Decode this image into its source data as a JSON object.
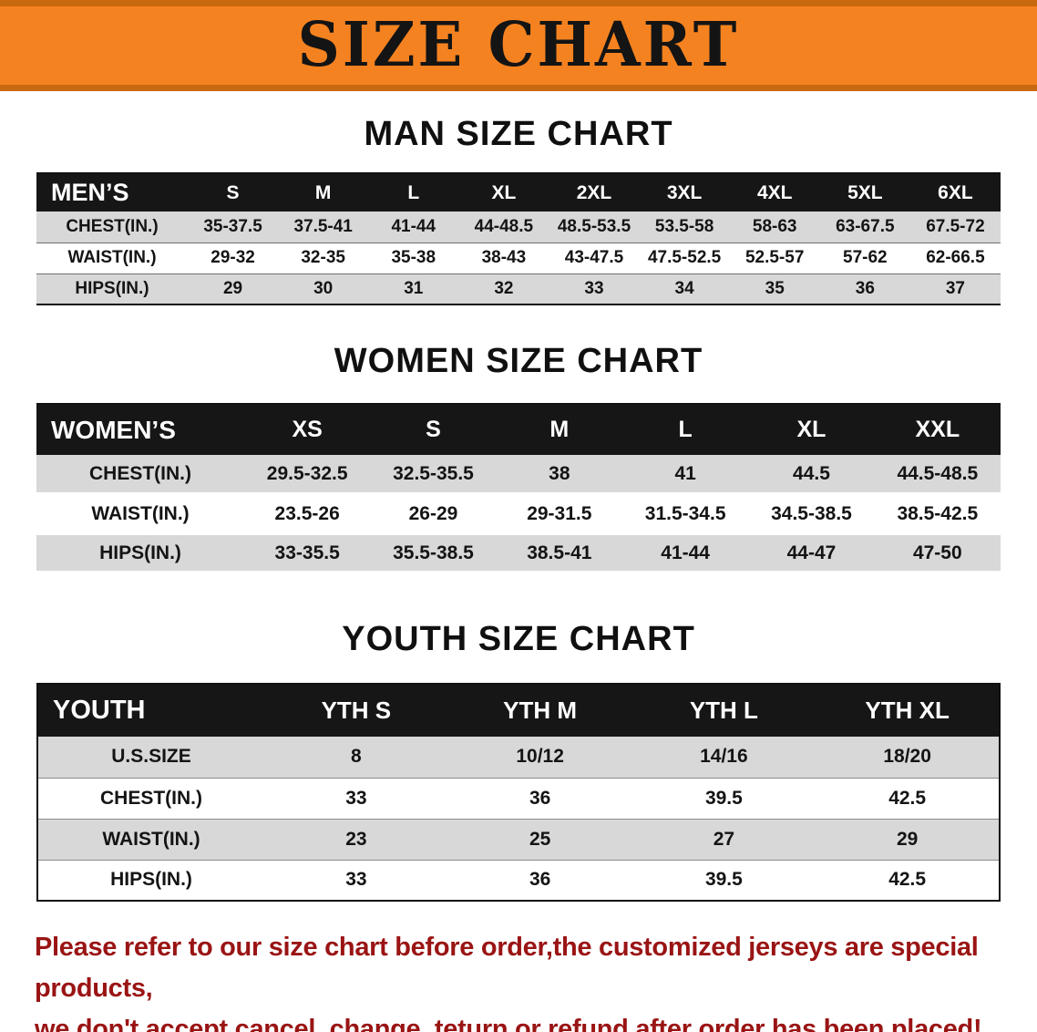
{
  "banner": {
    "title": "SIZE CHART"
  },
  "colors": {
    "banner_orange": "#f58220",
    "banner_edge_dark": "#c8680f",
    "table_header_black": "#161616",
    "row_stripe_gray": "#d8d8d8",
    "disclaimer_red": "#9a1414"
  },
  "men_section": {
    "heading": "MAN SIZE CHART",
    "table": {
      "corner": "MEN’S",
      "sizes": [
        "S",
        "M",
        "L",
        "XL",
        "2XL",
        "3XL",
        "4XL",
        "5XL",
        "6XL"
      ],
      "rows": [
        {
          "label": "CHEST(IN.)",
          "values": [
            "35-37.5",
            "37.5-41",
            "41-44",
            "44-48.5",
            "48.5-53.5",
            "53.5-58",
            "58-63",
            "63-67.5",
            "67.5-72"
          ]
        },
        {
          "label": "WAIST(IN.)",
          "values": [
            "29-32",
            "32-35",
            "35-38",
            "38-43",
            "43-47.5",
            "47.5-52.5",
            "52.5-57",
            "57-62",
            "62-66.5"
          ]
        },
        {
          "label": "HIPS(IN.)",
          "values": [
            "29",
            "30",
            "31",
            "32",
            "33",
            "34",
            "35",
            "36",
            "37"
          ]
        }
      ]
    }
  },
  "women_section": {
    "heading": "WOMEN SIZE CHART",
    "table": {
      "corner": "WOMEN’S",
      "sizes": [
        "XS",
        "S",
        "M",
        "L",
        "XL",
        "XXL"
      ],
      "rows": [
        {
          "label": "CHEST(IN.)",
          "values": [
            "29.5-32.5",
            "32.5-35.5",
            "38",
            "41",
            "44.5",
            "44.5-48.5"
          ]
        },
        {
          "label": "WAIST(IN.)",
          "values": [
            "23.5-26",
            "26-29",
            "29-31.5",
            "31.5-34.5",
            "34.5-38.5",
            "38.5-42.5"
          ]
        },
        {
          "label": "HIPS(IN.)",
          "values": [
            "33-35.5",
            "35.5-38.5",
            "38.5-41",
            "41-44",
            "44-47",
            "47-50"
          ]
        }
      ]
    }
  },
  "youth_section": {
    "heading": "YOUTH SIZE CHART",
    "table": {
      "corner": "YOUTH",
      "sizes": [
        "YTH S",
        "YTH M",
        "YTH L",
        "YTH XL"
      ],
      "rows": [
        {
          "label": "U.S.SIZE",
          "values": [
            "8",
            "10/12",
            "14/16",
            "18/20"
          ]
        },
        {
          "label": "CHEST(IN.)",
          "values": [
            "33",
            "36",
            "39.5",
            "42.5"
          ]
        },
        {
          "label": "WAIST(IN.)",
          "values": [
            "23",
            "25",
            "27",
            "29"
          ]
        },
        {
          "label": "HIPS(IN.)",
          "values": [
            "33",
            "36",
            "39.5",
            "42.5"
          ]
        }
      ]
    }
  },
  "disclaimer": {
    "line1": "Please refer to our size chart before order,the customized jerseys are special products,",
    "line2": "we don't accept cancel, change, teturn or refund after order has been placed!"
  }
}
